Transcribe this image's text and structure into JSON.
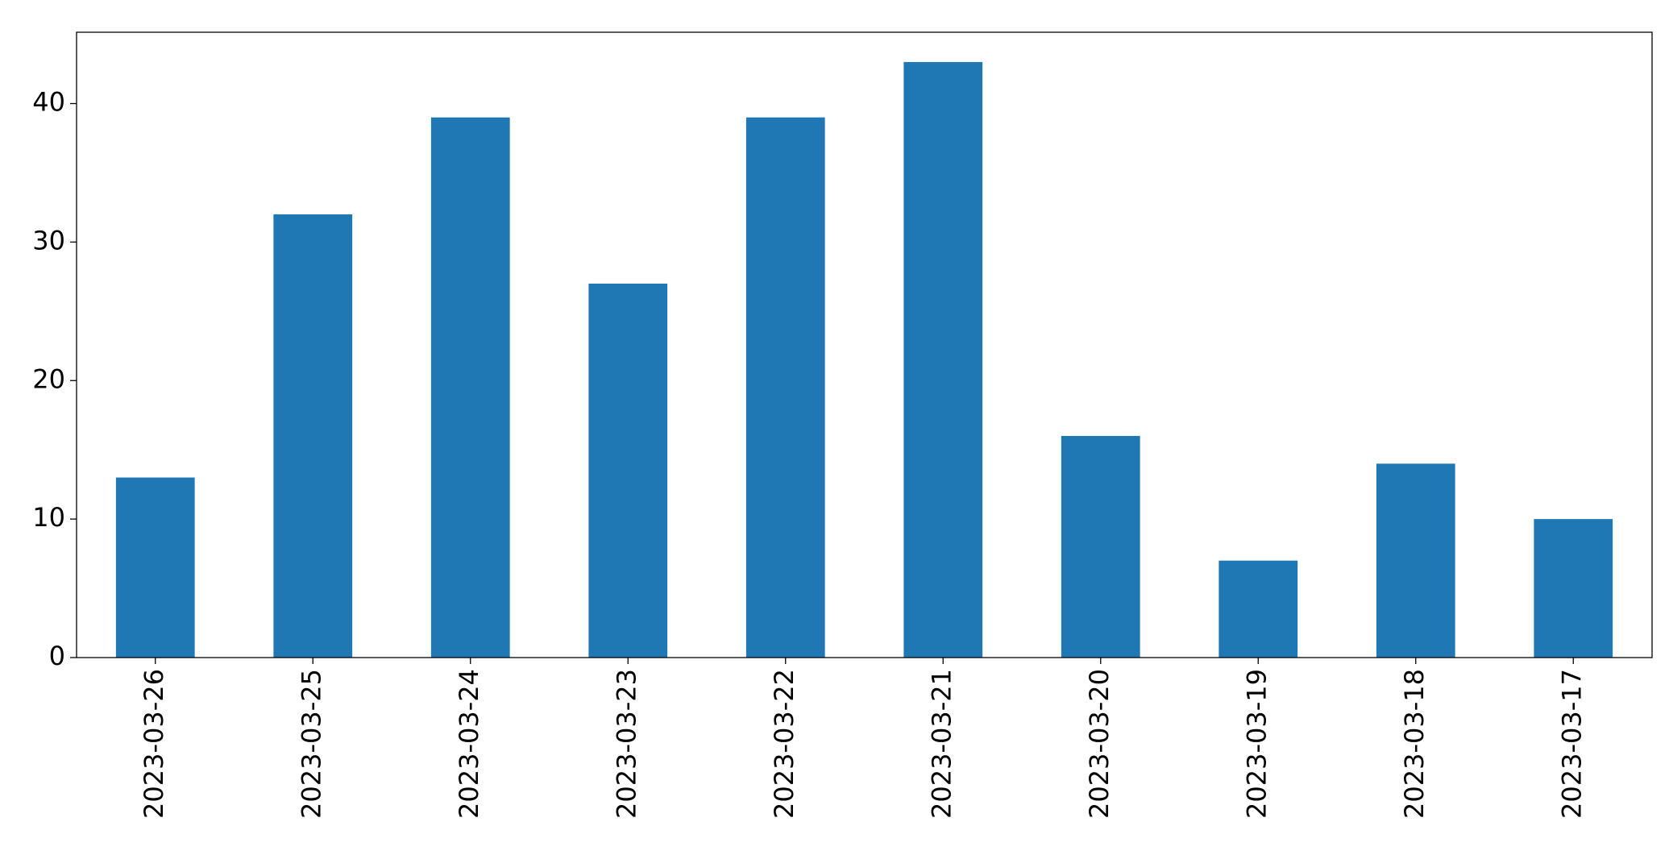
{
  "chart_data": {
    "type": "bar",
    "categories": [
      "2023-03-26",
      "2023-03-25",
      "2023-03-24",
      "2023-03-23",
      "2023-03-22",
      "2023-03-21",
      "2023-03-20",
      "2023-03-19",
      "2023-03-18",
      "2023-03-17"
    ],
    "values": [
      13,
      32,
      39,
      27,
      39,
      43,
      16,
      7,
      14,
      10
    ],
    "color": "#1f77b4",
    "ylim": [
      0,
      45.15
    ],
    "yticks": [
      0,
      10,
      20,
      30,
      40
    ],
    "grid": false
  }
}
